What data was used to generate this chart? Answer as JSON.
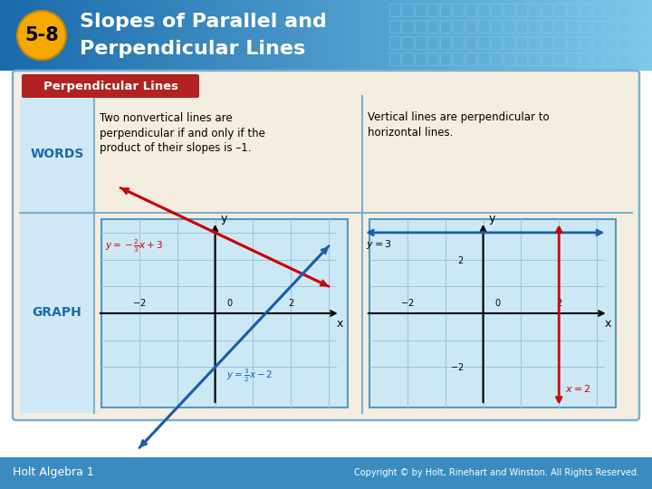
{
  "title_line1": "Slopes of Parallel and",
  "title_line2": "Perpendicular Lines",
  "badge_text": "5-8",
  "badge_bg": "#F5A800",
  "header_bg": "#1a6aab",
  "header_bg_right": "#5bbde0",
  "section_label": "Perpendicular Lines",
  "section_label_bg": "#b22222",
  "table_bg": "#f5ede0",
  "table_border": "#7ab0d0",
  "col_label_bg": "#d0e8f5",
  "words_label": "WORDS",
  "label_color": "#1a6aab",
  "graph_label": "GRAPH",
  "words_text1_lines": [
    "Two nonvertical lines are",
    "perpendicular if and only if the",
    "product of their slopes is –1."
  ],
  "words_text2_lines": [
    "Vertical lines are perpendicular to",
    "horizontal lines."
  ],
  "footer_text": "Holt Algebra 1",
  "copyright_text": "Copyright © by Holt, Rinehart and Winston. All Rights Reserved.",
  "footer_bg": "#3a8bbf",
  "line1_color": "#cc0000",
  "line2_color": "#1a5fa8",
  "graph_bg": "#cce8f5",
  "graph_border": "#5599bb",
  "axis_color": "#000000",
  "grid_color": "#99c4d8",
  "white": "#ffffff",
  "black": "#000000"
}
